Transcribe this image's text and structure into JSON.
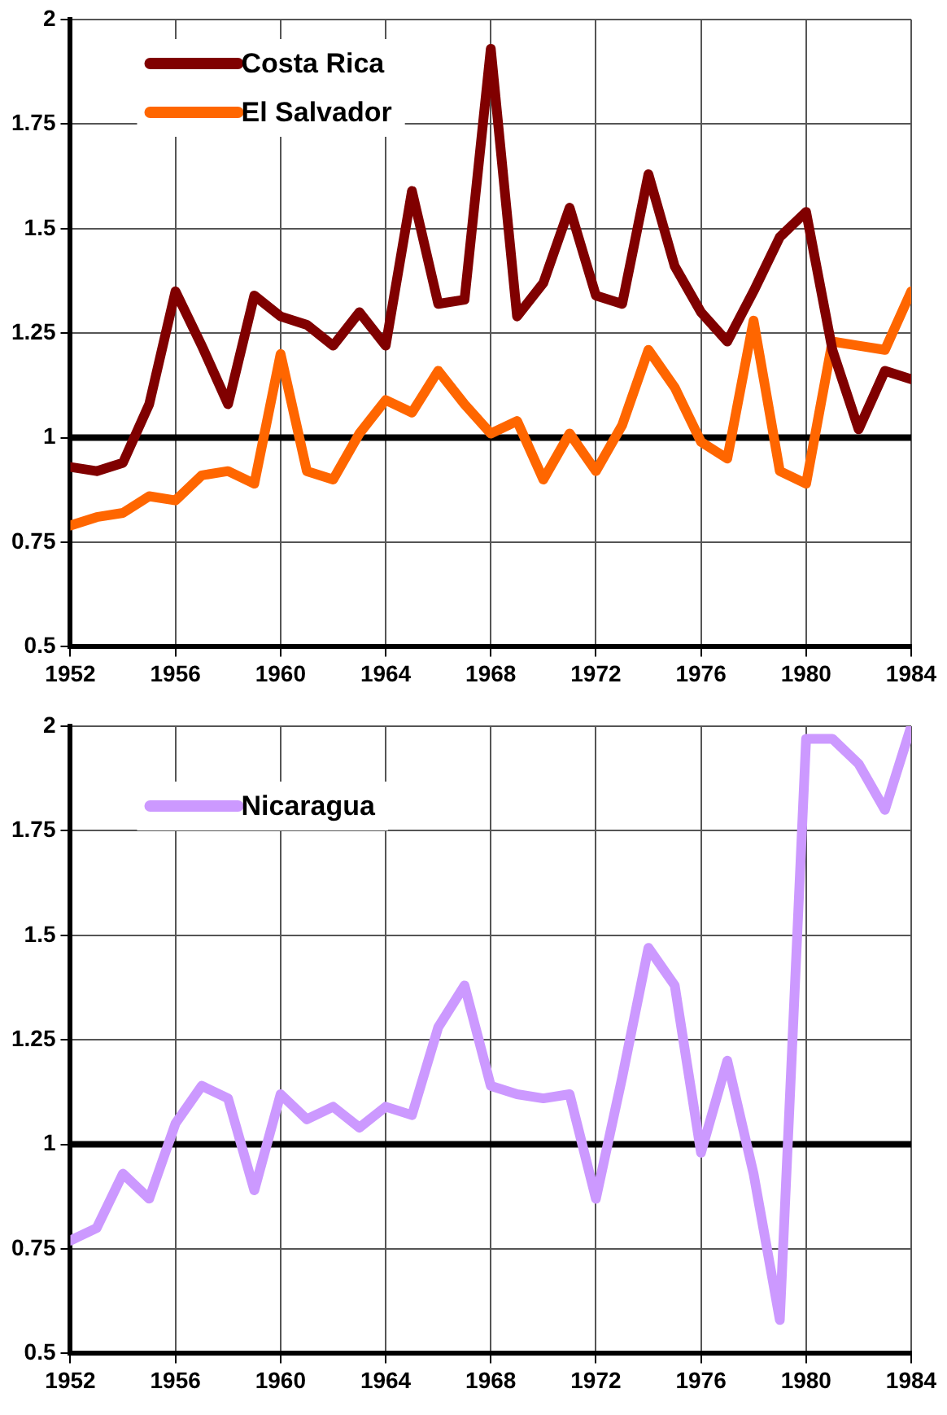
{
  "chart_data": [
    {
      "type": "line",
      "x": [
        1952,
        1953,
        1954,
        1955,
        1956,
        1957,
        1958,
        1959,
        1960,
        1961,
        1962,
        1963,
        1964,
        1965,
        1966,
        1967,
        1968,
        1969,
        1970,
        1971,
        1972,
        1973,
        1974,
        1975,
        1976,
        1977,
        1978,
        1979,
        1980,
        1981,
        1982,
        1983,
        1984
      ],
      "series": [
        {
          "name": "Costa Rica",
          "color": "#800000",
          "values": [
            0.93,
            0.92,
            0.94,
            1.08,
            1.35,
            1.22,
            1.08,
            1.34,
            1.29,
            1.27,
            1.22,
            1.3,
            1.22,
            1.59,
            1.32,
            1.33,
            1.93,
            1.29,
            1.37,
            1.55,
            1.34,
            1.32,
            1.63,
            1.41,
            1.3,
            1.23,
            1.35,
            1.48,
            1.54,
            1.21,
            1.02,
            1.16,
            1.14
          ]
        },
        {
          "name": "El Salvador",
          "color": "#ff6600",
          "values": [
            0.79,
            0.81,
            0.82,
            0.86,
            0.85,
            0.91,
            0.92,
            0.89,
            1.2,
            0.92,
            0.9,
            1.01,
            1.09,
            1.06,
            1.16,
            1.08,
            1.01,
            1.04,
            0.9,
            1.01,
            0.92,
            1.03,
            1.21,
            1.12,
            0.99,
            0.95,
            1.28,
            0.92,
            0.89,
            1.23,
            1.22,
            1.21,
            1.35
          ]
        }
      ],
      "xlim": [
        1952,
        1984
      ],
      "xticks": [
        1952,
        1956,
        1960,
        1964,
        1968,
        1972,
        1976,
        1980,
        1984
      ],
      "ylim": [
        0.5,
        2
      ],
      "yticks": [
        0.5,
        0.75,
        1,
        1.25,
        1.5,
        1.75,
        2
      ],
      "ref_lines": [
        {
          "axis": "y",
          "value": 1,
          "color": "#000000"
        }
      ],
      "grid": true,
      "legend": "top left",
      "marker": "none",
      "line_style": "solid"
    },
    {
      "type": "line",
      "x": [
        1952,
        1953,
        1954,
        1955,
        1956,
        1957,
        1958,
        1959,
        1960,
        1961,
        1962,
        1963,
        1964,
        1965,
        1966,
        1967,
        1968,
        1969,
        1970,
        1971,
        1972,
        1973,
        1974,
        1975,
        1976,
        1977,
        1978,
        1979,
        1980,
        1981,
        1982,
        1983,
        1984
      ],
      "series": [
        {
          "name": "Nicaragua",
          "color": "#cc99ff",
          "values": [
            0.77,
            0.8,
            0.93,
            0.87,
            1.05,
            1.14,
            1.11,
            0.89,
            1.12,
            1.06,
            1.09,
            1.04,
            1.09,
            1.07,
            1.28,
            1.38,
            1.14,
            1.12,
            1.11,
            1.12,
            0.87,
            1.16,
            1.47,
            1.38,
            0.98,
            1.2,
            0.93,
            0.58,
            1.97,
            1.97,
            1.91,
            1.8,
            2
          ]
        }
      ],
      "xlim": [
        1952,
        1984
      ],
      "xticks": [
        1952,
        1956,
        1960,
        1964,
        1968,
        1972,
        1976,
        1980,
        1984
      ],
      "ylim": [
        0.5,
        2
      ],
      "yticks": [
        0.5,
        0.75,
        1,
        1.25,
        1.5,
        1.75,
        2
      ],
      "ref_lines": [
        {
          "axis": "y",
          "value": 1,
          "color": "#000000"
        }
      ],
      "grid": true,
      "legend": "top left",
      "marker": "none",
      "line_style": "solid"
    }
  ]
}
